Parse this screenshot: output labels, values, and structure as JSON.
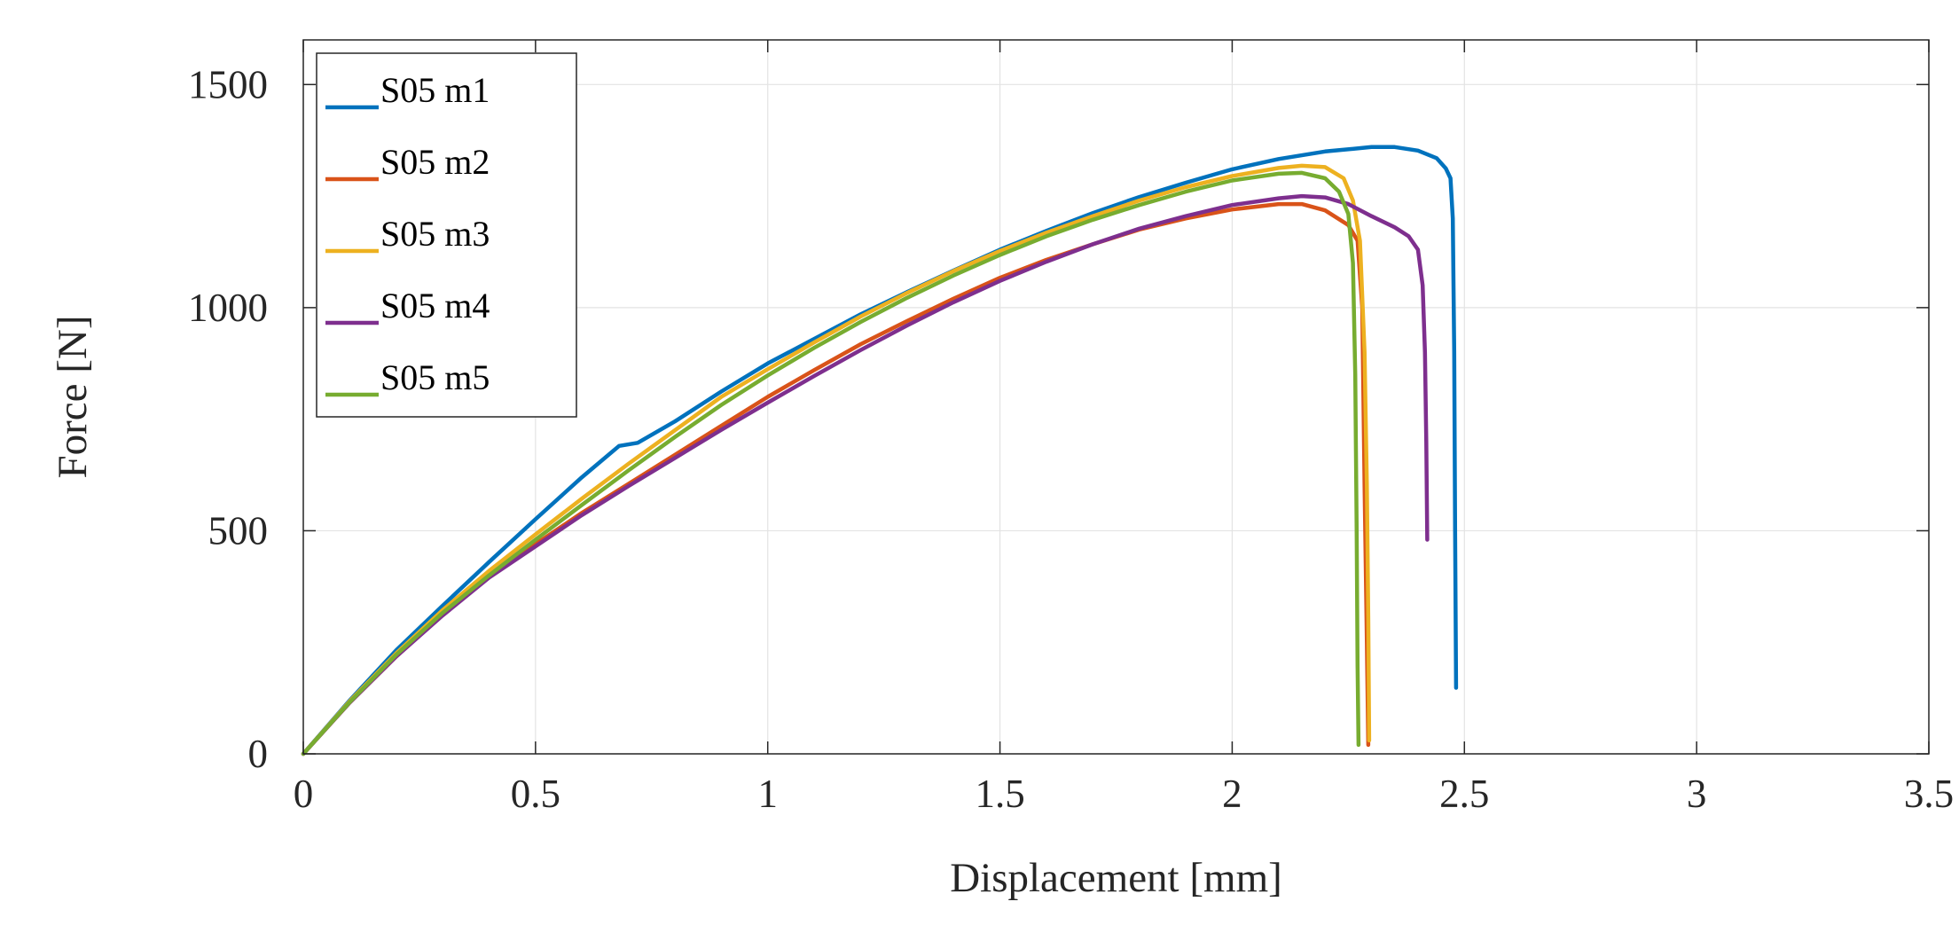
{
  "chart_data": {
    "type": "line",
    "title": "",
    "xlabel": "Displacement [mm]",
    "ylabel": "Force [N]",
    "xlim": [
      0,
      3.5
    ],
    "ylim": [
      0,
      1600
    ],
    "xticks": [
      0,
      0.5,
      1,
      1.5,
      2,
      2.5,
      3,
      3.5
    ],
    "xtick_labels": [
      "0",
      "0.5",
      "1",
      "1.5",
      "2",
      "2.5",
      "3",
      "3.5"
    ],
    "yticks": [
      0,
      500,
      1000,
      1500
    ],
    "ytick_labels": [
      "0",
      "500",
      "1000",
      "1500"
    ],
    "grid": true,
    "legend_position": "top-left",
    "series": [
      {
        "name": "S05 m1",
        "color": "#0072BD",
        "points": [
          [
            0,
            0
          ],
          [
            0.1,
            120
          ],
          [
            0.2,
            232
          ],
          [
            0.3,
            332
          ],
          [
            0.4,
            430
          ],
          [
            0.5,
            526
          ],
          [
            0.6,
            620
          ],
          [
            0.68,
            690
          ],
          [
            0.72,
            697
          ],
          [
            0.8,
            745
          ],
          [
            0.9,
            812
          ],
          [
            1.0,
            875
          ],
          [
            1.1,
            930
          ],
          [
            1.2,
            985
          ],
          [
            1.3,
            1035
          ],
          [
            1.4,
            1083
          ],
          [
            1.5,
            1130
          ],
          [
            1.6,
            1172
          ],
          [
            1.7,
            1212
          ],
          [
            1.8,
            1248
          ],
          [
            1.9,
            1280
          ],
          [
            2.0,
            1310
          ],
          [
            2.1,
            1333
          ],
          [
            2.2,
            1350
          ],
          [
            2.3,
            1360
          ],
          [
            2.35,
            1360
          ],
          [
            2.4,
            1352
          ],
          [
            2.44,
            1335
          ],
          [
            2.46,
            1312
          ],
          [
            2.47,
            1290
          ],
          [
            2.475,
            1200
          ],
          [
            2.478,
            900
          ],
          [
            2.48,
            500
          ],
          [
            2.482,
            148
          ]
        ]
      },
      {
        "name": "S05 m2",
        "color": "#D95319",
        "points": [
          [
            0,
            0
          ],
          [
            0.1,
            115
          ],
          [
            0.2,
            218
          ],
          [
            0.3,
            312
          ],
          [
            0.4,
            400
          ],
          [
            0.5,
            470
          ],
          [
            0.6,
            540
          ],
          [
            0.7,
            605
          ],
          [
            0.8,
            670
          ],
          [
            0.9,
            735
          ],
          [
            1.0,
            800
          ],
          [
            1.1,
            860
          ],
          [
            1.2,
            918
          ],
          [
            1.3,
            970
          ],
          [
            1.4,
            1020
          ],
          [
            1.5,
            1067
          ],
          [
            1.6,
            1107
          ],
          [
            1.7,
            1142
          ],
          [
            1.8,
            1175
          ],
          [
            1.9,
            1200
          ],
          [
            2.0,
            1220
          ],
          [
            2.1,
            1232
          ],
          [
            2.15,
            1232
          ],
          [
            2.2,
            1218
          ],
          [
            2.25,
            1185
          ],
          [
            2.27,
            1150
          ],
          [
            2.28,
            1000
          ],
          [
            2.285,
            600
          ],
          [
            2.29,
            250
          ],
          [
            2.293,
            20
          ]
        ]
      },
      {
        "name": "S05 m3",
        "color": "#EDB120",
        "points": [
          [
            0,
            0
          ],
          [
            0.1,
            118
          ],
          [
            0.2,
            225
          ],
          [
            0.3,
            322
          ],
          [
            0.4,
            410
          ],
          [
            0.5,
            492
          ],
          [
            0.6,
            572
          ],
          [
            0.7,
            650
          ],
          [
            0.8,
            725
          ],
          [
            0.9,
            800
          ],
          [
            1.0,
            862
          ],
          [
            1.1,
            922
          ],
          [
            1.2,
            980
          ],
          [
            1.3,
            1033
          ],
          [
            1.4,
            1082
          ],
          [
            1.5,
            1127
          ],
          [
            1.6,
            1168
          ],
          [
            1.7,
            1205
          ],
          [
            1.8,
            1240
          ],
          [
            1.9,
            1270
          ],
          [
            2.0,
            1295
          ],
          [
            2.1,
            1313
          ],
          [
            2.15,
            1318
          ],
          [
            2.2,
            1315
          ],
          [
            2.24,
            1290
          ],
          [
            2.26,
            1240
          ],
          [
            2.275,
            1150
          ],
          [
            2.285,
            900
          ],
          [
            2.29,
            600
          ],
          [
            2.293,
            300
          ],
          [
            2.295,
            30
          ]
        ]
      },
      {
        "name": "S05 m4",
        "color": "#7E2F8E",
        "points": [
          [
            0,
            0
          ],
          [
            0.1,
            115
          ],
          [
            0.2,
            218
          ],
          [
            0.3,
            310
          ],
          [
            0.4,
            395
          ],
          [
            0.5,
            465
          ],
          [
            0.6,
            535
          ],
          [
            0.7,
            600
          ],
          [
            0.8,
            663
          ],
          [
            0.9,
            726
          ],
          [
            1.0,
            787
          ],
          [
            1.1,
            847
          ],
          [
            1.2,
            905
          ],
          [
            1.3,
            960
          ],
          [
            1.4,
            1012
          ],
          [
            1.5,
            1060
          ],
          [
            1.6,
            1103
          ],
          [
            1.7,
            1142
          ],
          [
            1.8,
            1177
          ],
          [
            1.9,
            1205
          ],
          [
            2.0,
            1230
          ],
          [
            2.1,
            1245
          ],
          [
            2.15,
            1250
          ],
          [
            2.2,
            1247
          ],
          [
            2.25,
            1232
          ],
          [
            2.3,
            1205
          ],
          [
            2.35,
            1180
          ],
          [
            2.38,
            1160
          ],
          [
            2.4,
            1130
          ],
          [
            2.41,
            1050
          ],
          [
            2.415,
            900
          ],
          [
            2.418,
            700
          ],
          [
            2.42,
            480
          ]
        ]
      },
      {
        "name": "S05 m5",
        "color": "#77AC30",
        "points": [
          [
            0,
            0
          ],
          [
            0.1,
            116
          ],
          [
            0.2,
            222
          ],
          [
            0.3,
            316
          ],
          [
            0.4,
            400
          ],
          [
            0.5,
            480
          ],
          [
            0.6,
            558
          ],
          [
            0.7,
            635
          ],
          [
            0.8,
            710
          ],
          [
            0.9,
            782
          ],
          [
            1.0,
            848
          ],
          [
            1.1,
            910
          ],
          [
            1.2,
            968
          ],
          [
            1.3,
            1022
          ],
          [
            1.4,
            1072
          ],
          [
            1.5,
            1118
          ],
          [
            1.6,
            1160
          ],
          [
            1.7,
            1197
          ],
          [
            1.8,
            1230
          ],
          [
            1.9,
            1260
          ],
          [
            2.0,
            1285
          ],
          [
            2.1,
            1300
          ],
          [
            2.15,
            1302
          ],
          [
            2.2,
            1290
          ],
          [
            2.23,
            1260
          ],
          [
            2.25,
            1210
          ],
          [
            2.26,
            1100
          ],
          [
            2.265,
            850
          ],
          [
            2.268,
            500
          ],
          [
            2.27,
            200
          ],
          [
            2.272,
            20
          ]
        ]
      }
    ]
  }
}
